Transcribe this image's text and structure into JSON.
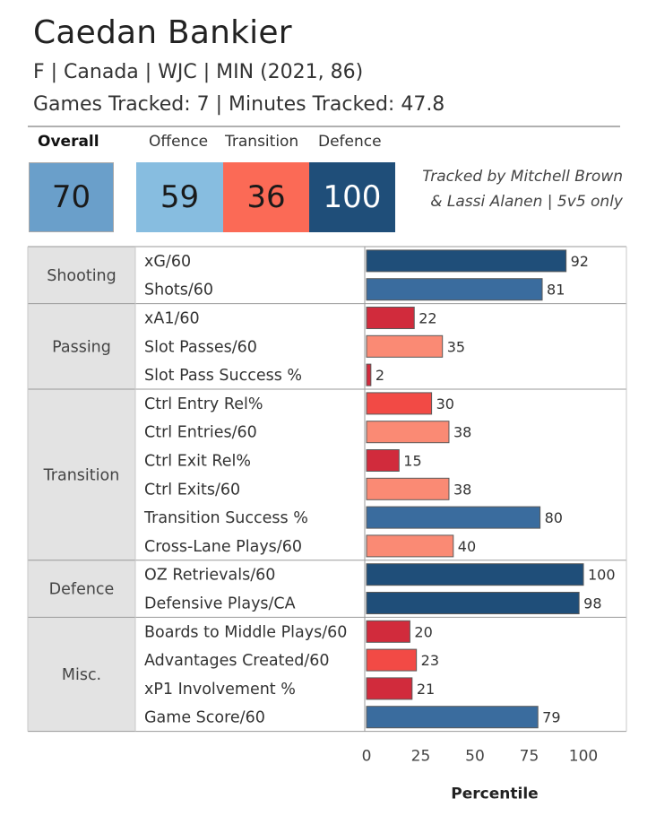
{
  "header": {
    "player_name": "Caedan Bankier",
    "info_line": "F | Canada | WJC | MIN (2021, 86)",
    "tracking_line": "Games Tracked: 7 | Minutes Tracked: 47.8"
  },
  "scores": {
    "overall_label": "Overall",
    "overall_value": "70",
    "offence_label": "Offence",
    "offence_value": "59",
    "transition_label": "Transition",
    "transition_value": "36",
    "defence_label": "Defence",
    "defence_value": "100"
  },
  "credit": {
    "line1": "Tracked by Mitchell Brown",
    "line2": "& Lassi Alanen | 5v5 only"
  },
  "colors": {
    "overall_box": "#6a9fca",
    "offence_box": "#87bde0",
    "transition_box": "#fb6a56",
    "defence_box": "#1f4e79",
    "bar_dark_blue": "#1f4e79",
    "bar_blue": "#3a6c9e",
    "bar_dark_red": "#d12b3c",
    "bar_red": "#f24a45",
    "bar_salmon": "#fa8a74"
  },
  "chart_data": {
    "type": "bar",
    "orientation": "horizontal",
    "xlabel": "Percentile",
    "xlim": [
      0,
      100
    ],
    "xticks": [
      "0",
      "25",
      "50",
      "75",
      "100"
    ],
    "groups": [
      {
        "name": "Shooting",
        "rows": [
          {
            "label": "xG/60",
            "value": 92,
            "color": "bar_dark_blue"
          },
          {
            "label": "Shots/60",
            "value": 81,
            "color": "bar_blue"
          }
        ]
      },
      {
        "name": "Passing",
        "rows": [
          {
            "label": "xA1/60",
            "value": 22,
            "color": "bar_dark_red"
          },
          {
            "label": "Slot Passes/60",
            "value": 35,
            "color": "bar_salmon"
          },
          {
            "label": "Slot Pass Success %",
            "value": 2,
            "color": "bar_dark_red"
          }
        ]
      },
      {
        "name": "Transition",
        "rows": [
          {
            "label": "Ctrl Entry Rel%",
            "value": 30,
            "color": "bar_red"
          },
          {
            "label": "Ctrl Entries/60",
            "value": 38,
            "color": "bar_salmon"
          },
          {
            "label": "Ctrl Exit Rel%",
            "value": 15,
            "color": "bar_dark_red"
          },
          {
            "label": "Ctrl Exits/60",
            "value": 38,
            "color": "bar_salmon"
          },
          {
            "label": "Transition Success %",
            "value": 80,
            "color": "bar_blue"
          },
          {
            "label": "Cross-Lane Plays/60",
            "value": 40,
            "color": "bar_salmon"
          }
        ]
      },
      {
        "name": "Defence",
        "rows": [
          {
            "label": "OZ Retrievals/60",
            "value": 100,
            "color": "bar_dark_blue"
          },
          {
            "label": "Defensive Plays/CA",
            "value": 98,
            "color": "bar_dark_blue"
          }
        ]
      },
      {
        "name": "Misc.",
        "rows": [
          {
            "label": "Boards to Middle Plays/60",
            "value": 20,
            "color": "bar_dark_red"
          },
          {
            "label": "Advantages Created/60",
            "value": 23,
            "color": "bar_red"
          },
          {
            "label": "xP1 Involvement %",
            "value": 21,
            "color": "bar_dark_red"
          },
          {
            "label": "Game Score/60",
            "value": 79,
            "color": "bar_blue"
          }
        ]
      }
    ]
  }
}
